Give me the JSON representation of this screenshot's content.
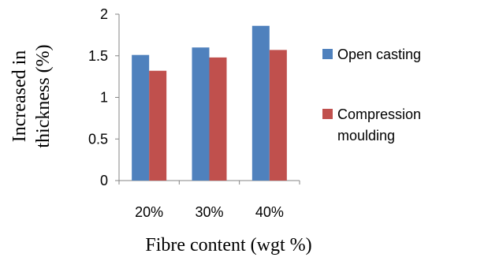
{
  "chart_data": {
    "type": "bar",
    "categories": [
      "20%",
      "30%",
      "40%"
    ],
    "series": [
      {
        "name": "Open casting",
        "values": [
          1.51,
          1.6,
          1.86
        ],
        "color": "#4f81bd"
      },
      {
        "name": "Compression moulding",
        "values": [
          1.32,
          1.48,
          1.57
        ],
        "color": "#c0504d"
      }
    ],
    "xlabel": "Fibre content (wgt %)",
    "ylabel_lines": [
      "Increased in",
      "thickness (%)"
    ],
    "ylim": [
      0,
      2
    ],
    "yticks": [
      "0",
      "0.5",
      "1",
      "1.5",
      "2"
    ],
    "grid": false,
    "legend": {
      "placement": "right",
      "entries": [
        {
          "lines": [
            "Open casting"
          ]
        },
        {
          "lines": [
            "Compression",
            "moulding"
          ]
        }
      ]
    }
  }
}
